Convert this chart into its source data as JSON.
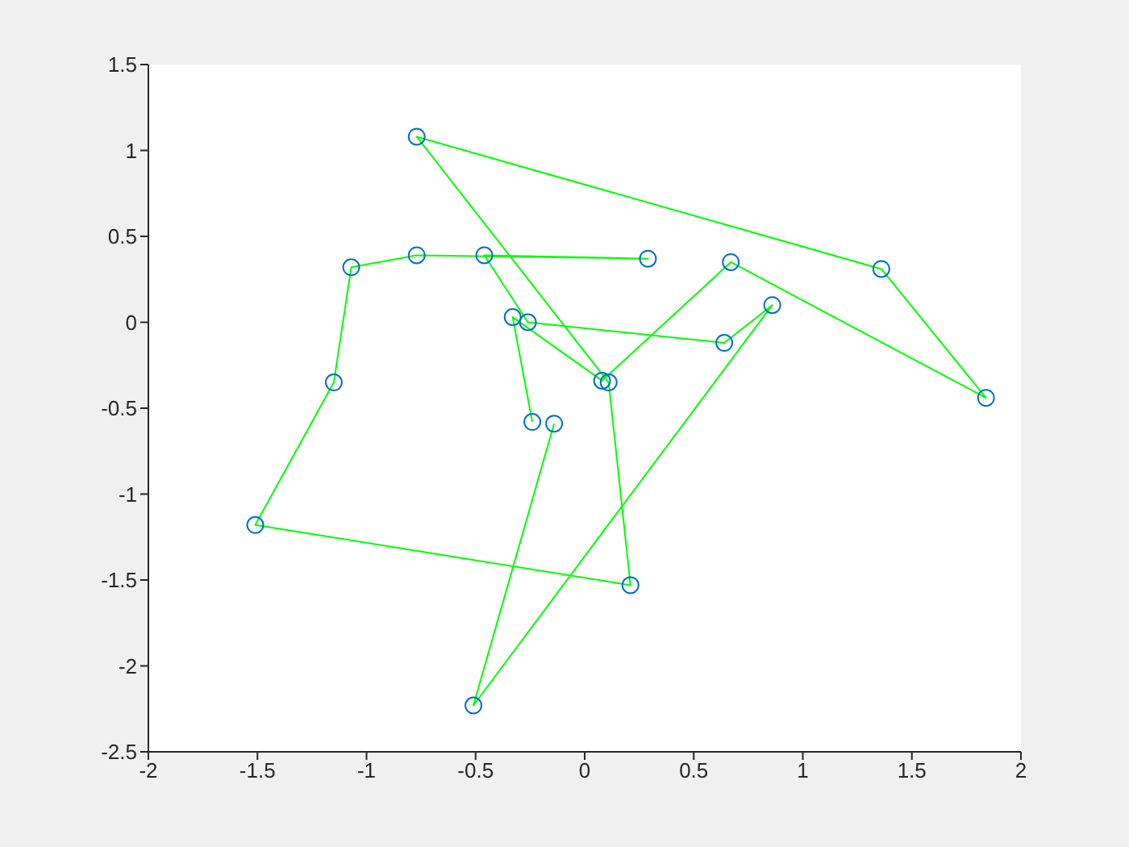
{
  "chart_data": {
    "type": "line",
    "xlim": [
      -2,
      2
    ],
    "xticks": [
      -2,
      -1.5,
      -1,
      -0.5,
      0,
      0.5,
      1,
      1.5,
      2
    ],
    "ylim": [
      -2.5,
      1.5
    ],
    "yticks": [
      -2.5,
      -2,
      -1.5,
      -1,
      -0.5,
      0,
      0.5,
      1,
      1.5
    ],
    "grid": false,
    "legend": false,
    "series": [
      {
        "type": "line",
        "color": "#00ff00",
        "marker": "none",
        "x": [
          -0.14,
          -0.51,
          0.86,
          0.64,
          -0.26,
          -0.46,
          0.29,
          -0.77,
          -1.07,
          -1.15,
          -1.51,
          0.21,
          0.11,
          -0.77,
          1.36,
          1.84,
          0.67,
          0.08,
          -0.33,
          -0.24
        ],
        "values": [
          -0.59,
          -2.23,
          0.1,
          -0.12,
          0.0,
          0.39,
          0.37,
          0.39,
          0.32,
          -0.35,
          -1.18,
          -1.53,
          -0.35,
          1.08,
          0.31,
          -0.44,
          0.35,
          -0.34,
          0.03,
          -0.58
        ]
      },
      {
        "type": "scatter",
        "color": "#0072bd",
        "marker": "circle",
        "x": [
          -0.14,
          -0.51,
          0.86,
          0.64,
          -0.26,
          -0.46,
          0.29,
          -0.77,
          -1.07,
          -1.15,
          -1.51,
          0.21,
          0.11,
          -0.77,
          1.36,
          1.84,
          0.67,
          0.08,
          -0.33,
          -0.24
        ],
        "values": [
          -0.59,
          -2.23,
          0.1,
          -0.12,
          0.0,
          0.39,
          0.37,
          0.39,
          0.32,
          -0.35,
          -1.18,
          -1.53,
          -0.35,
          1.08,
          0.31,
          -0.44,
          0.35,
          -0.34,
          0.03,
          -0.58
        ]
      }
    ]
  }
}
